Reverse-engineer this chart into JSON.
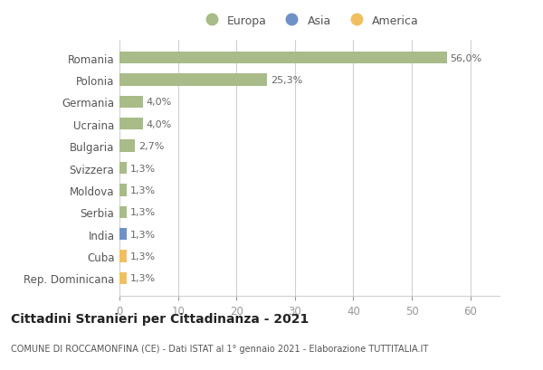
{
  "categories": [
    "Rep. Dominicana",
    "Cuba",
    "India",
    "Serbia",
    "Moldova",
    "Svizzera",
    "Bulgaria",
    "Ucraina",
    "Germania",
    "Polonia",
    "Romania"
  ],
  "values": [
    1.3,
    1.3,
    1.3,
    1.3,
    1.3,
    1.3,
    2.7,
    4.0,
    4.0,
    25.3,
    56.0
  ],
  "labels": [
    "1,3%",
    "1,3%",
    "1,3%",
    "1,3%",
    "1,3%",
    "1,3%",
    "2,7%",
    "4,0%",
    "4,0%",
    "25,3%",
    "56,0%"
  ],
  "colors": [
    "#f0c060",
    "#f0c060",
    "#7090c8",
    "#a8bb88",
    "#a8bb88",
    "#a8bb88",
    "#a8bb88",
    "#a8bb88",
    "#a8bb88",
    "#a8bb88",
    "#a8bb88"
  ],
  "europa_color": "#a8bb88",
  "asia_color": "#7090c8",
  "america_color": "#f0c060",
  "xlim": [
    0,
    65
  ],
  "xticks": [
    0,
    10,
    20,
    30,
    40,
    50,
    60
  ],
  "title": "Cittadini Stranieri per Cittadinanza - 2021",
  "subtitle": "COMUNE DI ROCCAMONFINA (CE) - Dati ISTAT al 1° gennaio 2021 - Elaborazione TUTTITALIA.IT",
  "legend_labels": [
    "Europa",
    "Asia",
    "America"
  ],
  "bg_color": "#ffffff",
  "grid_color": "#d0d0d0",
  "text_color": "#555555",
  "label_color": "#666666"
}
